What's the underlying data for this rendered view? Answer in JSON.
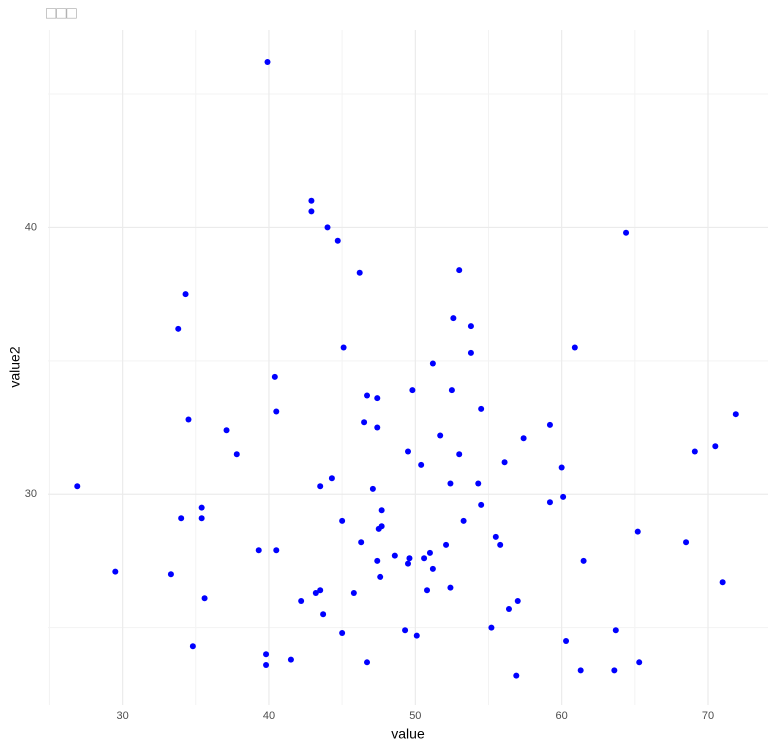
{
  "chart_data": {
    "type": "scatter",
    "title": "□□□",
    "x_label": "value",
    "y_label": "value2",
    "color": "#0000ff",
    "grid": true,
    "xlim": [
      24.9,
      74.1
    ],
    "ylim": [
      22.1,
      47.4
    ],
    "xticks": [
      30,
      40,
      50,
      60,
      70
    ],
    "yticks": [
      30,
      40
    ],
    "x_minor_ticks": [
      25,
      35,
      45,
      55,
      65
    ],
    "y_minor_ticks": [
      25,
      35,
      45
    ],
    "x": [
      26.9,
      29.5,
      33.3,
      33.8,
      34.0,
      34.3,
      34.5,
      34.8,
      35.4,
      35.4,
      35.6,
      37.1,
      37.8,
      39.3,
      39.9,
      39.8,
      39.8,
      40.4,
      40.5,
      40.5,
      41.5,
      42.2,
      42.9,
      42.9,
      43.2,
      43.5,
      43.5,
      43.7,
      44.0,
      44.3,
      44.7,
      45.0,
      45.0,
      45.1,
      45.8,
      46.2,
      46.3,
      46.5,
      46.7,
      46.7,
      47.1,
      47.4,
      47.4,
      47.4,
      47.5,
      47.6,
      47.7,
      47.7,
      48.6,
      49.3,
      49.5,
      49.5,
      49.6,
      49.8,
      50.1,
      50.4,
      50.6,
      50.8,
      51.0,
      51.2,
      51.2,
      51.7,
      52.1,
      52.4,
      52.4,
      52.5,
      52.6,
      53.0,
      53.0,
      53.3,
      53.8,
      53.8,
      54.3,
      54.5,
      54.5,
      55.2,
      55.5,
      55.8,
      56.1,
      56.4,
      56.9,
      57.0,
      57.4,
      59.2,
      59.2,
      60.0,
      60.1,
      60.3,
      60.9,
      61.3,
      61.5,
      63.6,
      63.7,
      64.4,
      65.2,
      65.3,
      68.5,
      69.1,
      70.5,
      71.0,
      71.9
    ],
    "values": [
      30.3,
      27.1,
      27.0,
      36.2,
      29.1,
      37.5,
      32.8,
      24.3,
      29.5,
      29.1,
      26.1,
      32.4,
      31.5,
      27.9,
      46.2,
      24.0,
      23.6,
      34.4,
      27.9,
      33.1,
      23.8,
      26.0,
      41.0,
      40.6,
      26.3,
      30.3,
      26.4,
      25.5,
      40.0,
      30.6,
      39.5,
      29.0,
      24.8,
      35.5,
      26.3,
      38.3,
      28.2,
      32.7,
      23.7,
      33.7,
      30.2,
      32.5,
      33.6,
      27.5,
      28.7,
      26.9,
      28.8,
      29.4,
      27.7,
      24.9,
      31.6,
      27.4,
      27.6,
      33.9,
      24.7,
      31.1,
      27.6,
      26.4,
      27.8,
      27.2,
      34.9,
      32.2,
      28.1,
      26.5,
      30.4,
      33.9,
      36.6,
      38.4,
      31.5,
      29.0,
      36.3,
      35.3,
      30.4,
      33.2,
      29.6,
      25.0,
      28.4,
      28.1,
      31.2,
      25.7,
      23.2,
      26.0,
      32.1,
      32.6,
      29.7,
      31.0,
      29.9,
      24.5,
      35.5,
      23.4,
      27.5,
      23.4,
      24.9,
      39.8,
      28.6,
      23.7,
      28.2,
      31.6,
      31.8,
      26.7,
      33.0
    ]
  }
}
